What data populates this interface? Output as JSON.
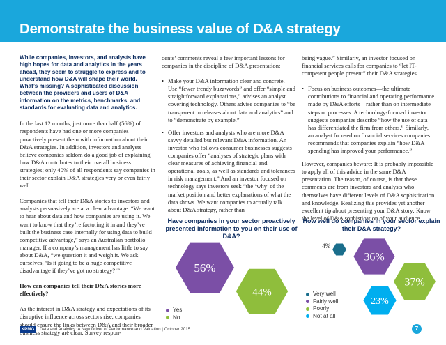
{
  "title": "Demonstrate the business value of D&A strategy",
  "intro": "While companies, investors, and analysts have high hopes for data and analytics in the years ahead, they seem to struggle to express and to understand how D&A will shape their world. What’s missing? A sophisticated discussion between the providers and users of D&A information on the metrics, benchmarks, and standards for evaluating data and analytics.",
  "col1": {
    "p1": "In the last 12 months, just more than half (56%) of respondents have had one or more companies proactively present them with information about their D&A strategies. In addition, investors and analysts believe companies seldom do a good job of explaining how D&A contributes to their overall business strategies; only 40% of all respondents say companies in their sector explain D&A strategies very or even fairly well.",
    "p2": "Companies that tell their D&A stories to investors and analysts persuasively are at a clear advantage. “We want to hear about data and how companies are using it. We want to know that they’re factoring it in and they’ve built the business case internally for using data to build competitive advantage,” says an Australian portfolio manager. If a company’s management has little to say about D&A, “we question it and weigh it. We ask ourselves, ‘Is it going to be a huge competitive disadvantage if they’ve got no strategy?’”",
    "subhead": "How can companies tell their D&A stories more effectively?",
    "p3": "As the interest in D&A strategy and expectations of its disruptive influence across sectors rise, companies should ensure the links between D&A and their broader business strategy are clear. Survey respon-"
  },
  "col2": {
    "p1": "dents’ comments reveal a few important lessons for companies in the discipline of D&A presentation:",
    "b1": "Make your D&A information clear and concrete. Use “fewer trendy buzzwords” and offer “simple and straightforward explanations,” advises an analyst covering technology. Others advise companies to “be transparent in releases about data and analytics” and to “demonstrate by example.”",
    "b2": "Offer investors and analysts who are more D&A savvy detailed but relevant D&A information. An investor who follows consumer businesses suggests companies offer “analyses of strategic plans with clear measures of achieving financial and operational goals, as well as standards and tolerances in risk management.” And an investor focused on technology says investors seek “the ‘why’ of the market position and better explanations of what the data shows. We want companies to actually talk about D&A strategy, rather than"
  },
  "col3": {
    "p1": "being vague.” Similarly, an investor focused on financial services calls for companies to “let IT-competent people present” their D&A strategies.",
    "b1": "Focus on business outcomes—the ultimate contributions to financial and operating performance made by D&A efforts—rather than on intermediate steps or processes. A technology-focused investor suggests companies describe “how the use of data has differentiated the firm from others.” Similarly, an analyst focused on financial services companies recommends that companies explain “how D&A spending has improved your performance.”",
    "p2": "However, companies beware: It is probably impossible to apply all of this advice in the same D&A presentation. The reason, of course, is that these comments are from investors and analysts who themselves have different levels of D&A sophistication and knowledge. Realizing this provides yet another excellent tip about presenting your D&A story: Know the level of D&A sophistication of your audience."
  },
  "chart_data": [
    {
      "type": "bubble",
      "title": "Have companies in your sector proactively presented information to you on their use of D&A?",
      "categories": [
        "Yes",
        "No"
      ],
      "values": [
        56,
        44
      ],
      "labels": [
        "56%",
        "44%"
      ],
      "colors": [
        "#7b4fa6",
        "#8fbe3c"
      ],
      "legend_position": "bottom-left"
    },
    {
      "type": "bubble",
      "title": "How well do companies in your sector explain their D&A strategy?",
      "categories": [
        "Very well",
        "Fairly well",
        "Poorly",
        "Not at all"
      ],
      "values": [
        4,
        36,
        37,
        23
      ],
      "labels": [
        "4%",
        "36%",
        "37%",
        "23%"
      ],
      "colors": [
        "#1a6e8c",
        "#7b4fa6",
        "#8fbe3c",
        "#00aeef"
      ],
      "legend_position": "bottom-left"
    }
  ],
  "footer": {
    "logo": "KPMG",
    "text": "Data and Analytics: A New Driver of Performance and Valuation | October 2015",
    "page": "7"
  }
}
